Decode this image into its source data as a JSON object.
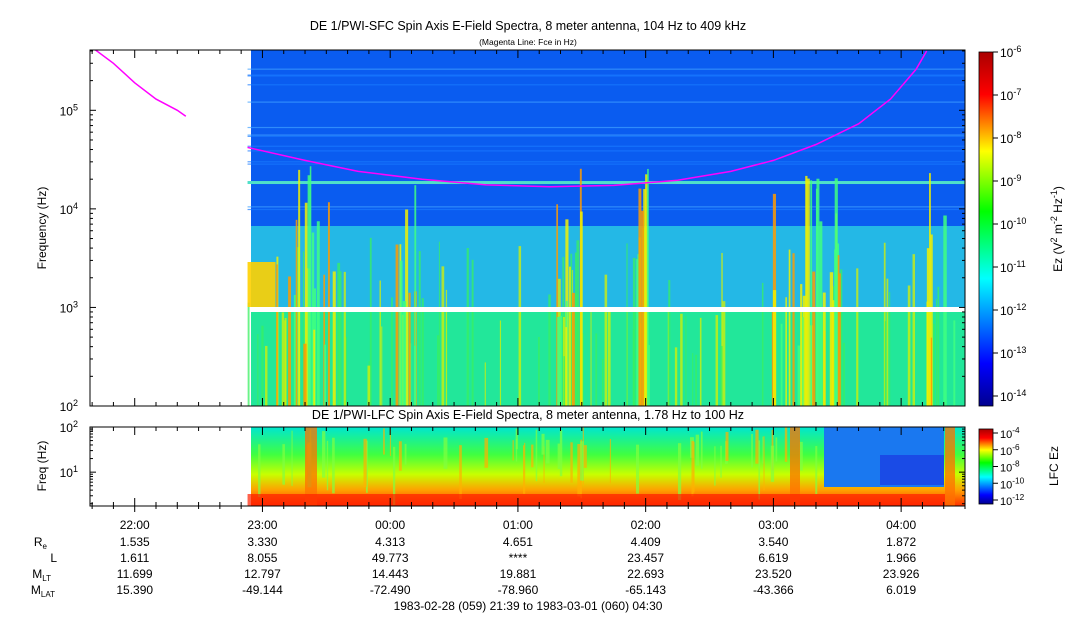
{
  "chart_data": [
    {
      "type": "heatmap",
      "title": "DE 1/PWI-SFC  Spin Axis E-Field Spectra, 8 meter antenna, 104 Hz to 409 kHz",
      "subtitle": "(Magenta Line: Fce in Hz)",
      "ylabel": "Frequency (Hz)",
      "yscale": "log",
      "ylim": [
        100,
        409000
      ],
      "ytick_labels": [
        "10^2",
        "10^3",
        "10^4",
        "10^5"
      ],
      "colorbar_label": "Ez (V^2 m^-2 Hz^-1)",
      "colorbar_ticks": [
        "10^-6",
        "10^-7",
        "10^-8",
        "10^-9",
        "10^-10",
        "10^-11",
        "10^-12",
        "10^-13",
        "10^-14"
      ],
      "data_start": "22:53",
      "band_boundaries_hz": [
        7000,
        1000
      ],
      "series": [
        {
          "name": "Fce",
          "color": "#ff00ff",
          "points": [
            [
              "21:39",
              450000
            ],
            [
              "21:50",
              300000
            ],
            [
              "22:00",
              190000
            ],
            [
              "22:10",
              130000
            ],
            [
              "22:20",
              100000
            ],
            [
              "22:24",
              87000
            ],
            [
              "22:53",
              42000
            ],
            [
              "23:20",
              31000
            ],
            [
              "23:45",
              24000
            ],
            [
              "00:15",
              20000
            ],
            [
              "00:45",
              17500
            ],
            [
              "01:15",
              16800
            ],
            [
              "01:45",
              17300
            ],
            [
              "02:15",
              19500
            ],
            [
              "02:40",
              24000
            ],
            [
              "03:00",
              31000
            ],
            [
              "03:20",
              45000
            ],
            [
              "03:40",
              73000
            ],
            [
              "03:55",
              130000
            ],
            [
              "04:07",
              260000
            ],
            [
              "04:12",
              400000
            ]
          ]
        }
      ]
    },
    {
      "type": "heatmap",
      "title": "DE 1/PWI-LFC  Spin Axis E-Field Spectra, 8 meter antenna, 1.78 Hz to 100 Hz",
      "ylabel": "Freq (Hz)",
      "yscale": "log",
      "ylim": [
        1.78,
        100
      ],
      "ytick_labels": [
        "10^1",
        "10^2"
      ],
      "colorbar_label": "LFC Ez",
      "colorbar_ticks": [
        "10^-4",
        "10^-6",
        "10^-8",
        "10^-10",
        "10^-12"
      ],
      "data_start": "22:53"
    }
  ],
  "time_axis": {
    "start": "21:39",
    "end": "04:30",
    "tick_labels": [
      "22:00",
      "23:00",
      "00:00",
      "01:00",
      "02:00",
      "03:00",
      "04:00"
    ]
  },
  "ephemeris": {
    "rows": [
      {
        "label": "R",
        "sub": "e",
        "values": [
          "1.535",
          "3.330",
          "4.313",
          "4.651",
          "4.409",
          "3.540",
          "1.872"
        ]
      },
      {
        "label": "L",
        "sub": "",
        "values": [
          "1.611",
          "8.055",
          "49.773",
          "****",
          "23.457",
          "6.619",
          "1.966"
        ]
      },
      {
        "label": "M",
        "sub": "LT",
        "values": [
          "11.699",
          "12.797",
          "14.443",
          "19.881",
          "22.693",
          "23.520",
          "23.926"
        ]
      },
      {
        "label": "M",
        "sub": "LAT",
        "values": [
          "15.390",
          "-49.144",
          "-72.490",
          "-78.960",
          "-65.143",
          "-43.366",
          "6.019"
        ]
      }
    ]
  },
  "footer": "1983-02-28 (059) 21:39 to 1983-03-01 (060) 04:30"
}
